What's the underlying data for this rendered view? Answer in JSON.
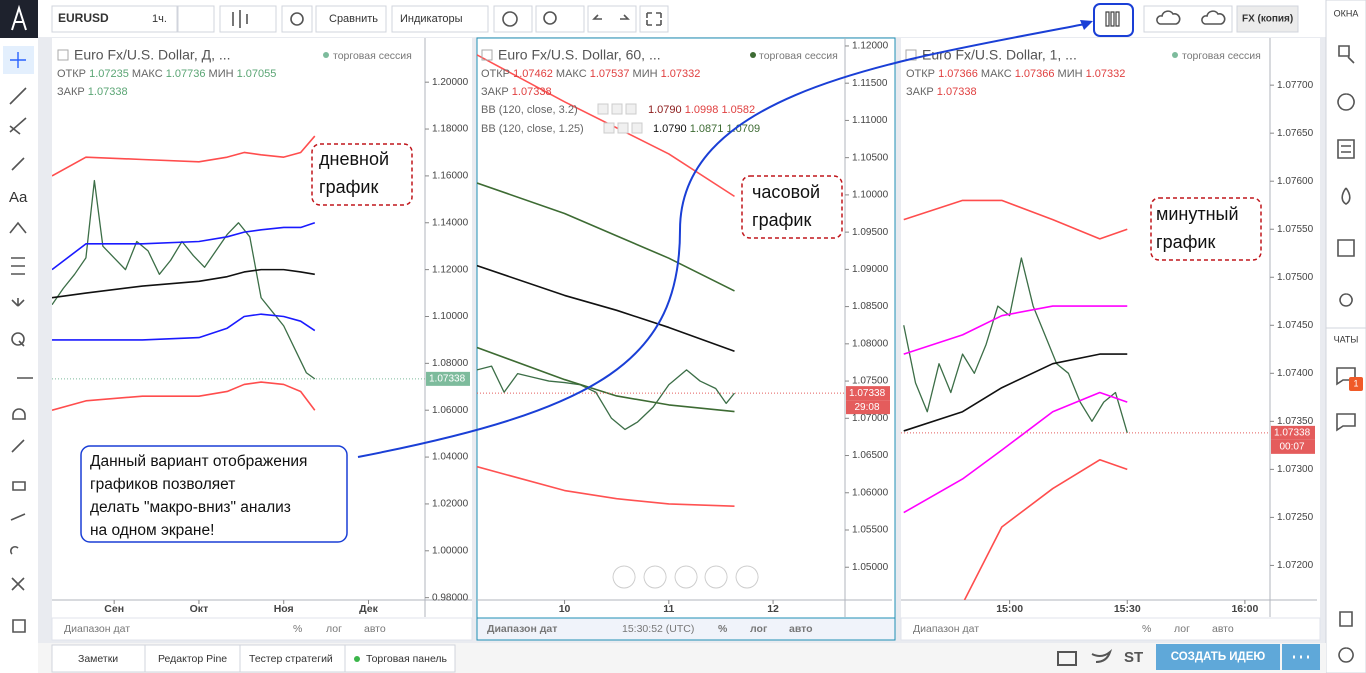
{
  "toolbar": {
    "symbol": "EURUSD",
    "interval": "1ч.",
    "compare": "Сравнить",
    "indicators": "Индикаторы",
    "layout_name": "FX (копия)"
  },
  "left_toolbar": {
    "text_tool": "Aa"
  },
  "right_sidebar": {
    "windows": "ОКНА",
    "chats": "ЧАТЫ",
    "badge": "1"
  },
  "bottom_bar": {
    "tabs": [
      "Заметки",
      "Редактор Pine",
      "Тестер стратегий",
      "Торговая панель"
    ],
    "stocktwits": "ST",
    "create_idea": "СОЗДАТЬ ИДЕЮ"
  },
  "panel_footer": {
    "range": "Диапазон дат",
    "percent": "%",
    "log": "лог",
    "auto": "авто",
    "clock": "15:30:52 (UTC)"
  },
  "annotations": {
    "daily": [
      "дневной",
      "график"
    ],
    "hourly": [
      "часовой",
      "график"
    ],
    "minute": [
      "минутный",
      "график"
    ],
    "note": [
      "Данный вариант отображения",
      "графиков позволяет",
      "делать \"макро-вниз\" анализ",
      "на одном экране!"
    ]
  },
  "chart_data": [
    {
      "type": "line",
      "title": "Euro Fx/U.S. Dollar, Д, ...",
      "session": "торговая сессия",
      "ohlc": {
        "open_label": "ОТКР",
        "open": "1.07235",
        "high_label": "МАКС",
        "high": "1.07736",
        "low_label": "МИН",
        "low": "1.07055",
        "close_label": "ЗАКР",
        "close": "1.07338"
      },
      "xlim": [
        8,
        140
      ],
      "ylim": [
        0.979,
        1.218
      ],
      "xticks": [
        {
          "value": 30,
          "label": "Сен"
        },
        {
          "value": 60,
          "label": "Окт"
        },
        {
          "value": 90,
          "label": "Ноя"
        },
        {
          "value": 120,
          "label": "Дек"
        }
      ],
      "yticks": [
        {
          "value": 0.98,
          "label": "0.98000"
        },
        {
          "value": 1.0,
          "label": "1.00000"
        },
        {
          "value": 1.02,
          "label": "1.02000"
        },
        {
          "value": 1.04,
          "label": "1.04000"
        },
        {
          "value": 1.06,
          "label": "1.06000"
        },
        {
          "value": 1.08,
          "label": "1.08000"
        },
        {
          "value": 1.1,
          "label": "1.10000"
        },
        {
          "value": 1.12,
          "label": "1.12000"
        },
        {
          "value": 1.14,
          "label": "1.14000"
        },
        {
          "value": 1.16,
          "label": "1.16000"
        },
        {
          "value": 1.18,
          "label": "1.18000"
        },
        {
          "value": 1.2,
          "label": "1.20000"
        }
      ],
      "grid": false,
      "last": 1.07338,
      "last_color": "#7dbb9c",
      "series": [
        {
          "color": "#3c6e47",
          "x": [
            8,
            12,
            16,
            20,
            23,
            26,
            30,
            34,
            38,
            42,
            46,
            50,
            54,
            58,
            62,
            66,
            70,
            74,
            78,
            82,
            86,
            90,
            94,
            98,
            101
          ],
          "values": [
            1.105,
            1.112,
            1.118,
            1.125,
            1.158,
            1.13,
            1.125,
            1.12,
            1.132,
            1.128,
            1.118,
            1.124,
            1.132,
            1.126,
            1.121,
            1.128,
            1.135,
            1.14,
            1.134,
            1.108,
            1.102,
            1.096,
            1.086,
            1.076,
            1.07338
          ]
        },
        {
          "color": "#ff4d4d",
          "x": [
            8,
            20,
            40,
            60,
            70,
            76,
            82,
            90,
            96,
            101
          ],
          "values": [
            1.16,
            1.168,
            1.167,
            1.166,
            1.168,
            1.17,
            1.169,
            1.168,
            1.17,
            1.177
          ]
        },
        {
          "color": "#1a1aff",
          "x": [
            8,
            20,
            40,
            60,
            70,
            76,
            82,
            90,
            96,
            101
          ],
          "values": [
            1.12,
            1.131,
            1.131,
            1.132,
            1.134,
            1.136,
            1.137,
            1.138,
            1.138,
            1.14
          ]
        },
        {
          "color": "#111111",
          "x": [
            8,
            20,
            40,
            60,
            70,
            76,
            82,
            90,
            96,
            101
          ],
          "values": [
            1.108,
            1.11,
            1.113,
            1.115,
            1.117,
            1.119,
            1.12,
            1.12,
            1.119,
            1.118
          ]
        },
        {
          "color": "#1a1aff",
          "x": [
            8,
            20,
            40,
            60,
            70,
            76,
            82,
            90,
            96,
            101
          ],
          "values": [
            1.09,
            1.09,
            1.09,
            1.091,
            1.095,
            1.1,
            1.101,
            1.1,
            1.098,
            1.094
          ]
        },
        {
          "color": "#ff4d4d",
          "x": [
            8,
            20,
            40,
            60,
            70,
            76,
            82,
            90,
            96,
            101
          ],
          "values": [
            1.06,
            1.064,
            1.066,
            1.066,
            1.068,
            1.071,
            1.072,
            1.071,
            1.068,
            1.06
          ]
        }
      ]
    },
    {
      "type": "line",
      "title": "Euro Fx/U.S. Dollar, 60, ...",
      "session": "торговая сессия",
      "ohlc": {
        "open_label": "ОТКР",
        "open": "1.07462",
        "high_label": "МАКС",
        "high": "1.07537",
        "low_label": "МИН",
        "low": "1.07332",
        "close_label": "ЗАКР",
        "close": "1.07338"
      },
      "indicators": [
        {
          "label": "BB (120, close, 3.2)",
          "values": [
            "1.0790",
            "1.0998",
            "1.0582"
          ]
        },
        {
          "label": "BB (120, close, 1.25)",
          "values": [
            "1.0790",
            "1.0871",
            "1.0709"
          ]
        }
      ],
      "xlim": [
        9.16,
        12.69
      ],
      "ylim": [
        1.0456,
        1.1208
      ],
      "xticks": [
        10,
        11,
        12
      ],
      "yticks": [
        {
          "value": 1.05,
          "label": "1.05000"
        },
        {
          "value": 1.055,
          "label": "1.05500"
        },
        {
          "value": 1.06,
          "label": "1.06000"
        },
        {
          "value": 1.065,
          "label": "1.06500"
        },
        {
          "value": 1.07,
          "label": "1.07000"
        },
        {
          "value": 1.075,
          "label": "1.07500"
        },
        {
          "value": 1.08,
          "label": "1.08000"
        },
        {
          "value": 1.085,
          "label": "1.08500"
        },
        {
          "value": 1.09,
          "label": "1.09000"
        },
        {
          "value": 1.095,
          "label": "1.09500"
        },
        {
          "value": 1.1,
          "label": "1.10000"
        },
        {
          "value": 1.105,
          "label": "1.10500"
        },
        {
          "value": 1.11,
          "label": "1.11000"
        },
        {
          "value": 1.115,
          "label": "1.11500"
        },
        {
          "value": 1.12,
          "label": "1.12000"
        }
      ],
      "grid": false,
      "last": 1.07338,
      "last_color": "#e45c5c",
      "countdown": "29:08",
      "series": [
        {
          "color": "#3c6e47",
          "x": [
            9.16,
            9.3,
            9.42,
            9.55,
            9.7,
            9.85,
            10.0,
            10.15,
            10.3,
            10.45,
            10.58,
            10.7,
            10.85,
            11.0,
            11.17,
            11.3,
            11.45,
            11.55,
            11.63
          ],
          "values": [
            1.0765,
            1.077,
            1.0735,
            1.076,
            1.0755,
            1.075,
            1.0748,
            1.0745,
            1.0735,
            1.07,
            1.0685,
            1.0695,
            1.0715,
            1.0745,
            1.0765,
            1.075,
            1.074,
            1.072,
            1.07338
          ]
        },
        {
          "color": "#ff5252",
          "x": [
            9.16,
            10.0,
            10.5,
            11.0,
            11.63
          ],
          "values": [
            1.1188,
            1.1125,
            1.109,
            1.1055,
            1.0998
          ]
        },
        {
          "color": "#3d6b33",
          "x": [
            9.16,
            10.0,
            10.5,
            11.0,
            11.63
          ],
          "values": [
            1.1016,
            1.0975,
            1.0945,
            1.0915,
            1.0871
          ]
        },
        {
          "color": "#111111",
          "x": [
            9.16,
            10.0,
            10.5,
            11.0,
            11.63
          ],
          "values": [
            1.0905,
            1.0865,
            1.0845,
            1.0822,
            1.079
          ]
        },
        {
          "color": "#3d6b33",
          "x": [
            9.16,
            10.0,
            10.5,
            11.0,
            11.63
          ],
          "values": [
            1.0795,
            1.0752,
            1.073,
            1.0718,
            1.0709
          ]
        },
        {
          "color": "#ff5252",
          "x": [
            9.16,
            10.0,
            10.5,
            11.0,
            11.63
          ],
          "values": [
            1.0635,
            1.0603,
            1.0592,
            1.0585,
            1.0582
          ]
        }
      ]
    },
    {
      "type": "line",
      "title": "Euro Fx/U.S. Dollar, 1, ...",
      "session": "торговая сессия",
      "ohlc": {
        "open_label": "ОТКР",
        "open": "1.07366",
        "high_label": "МАКС",
        "high": "1.07366",
        "low_label": "МИН",
        "low": "1.07332",
        "close_label": "ЗАКР",
        "close": "1.07338"
      },
      "xlim": [
        872.3,
        966.4
      ],
      "ylim": [
        1.07164,
        1.07747
      ],
      "xticks": [
        {
          "value": 900,
          "label": "15:00"
        },
        {
          "value": 930,
          "label": "15:30"
        },
        {
          "value": 960,
          "label": "16:00"
        }
      ],
      "yticks": [
        {
          "value": 1.072,
          "label": "1.07200"
        },
        {
          "value": 1.0725,
          "label": "1.07250"
        },
        {
          "value": 1.073,
          "label": "1.07300"
        },
        {
          "value": 1.0735,
          "label": "1.07350"
        },
        {
          "value": 1.074,
          "label": "1.07400"
        },
        {
          "value": 1.0745,
          "label": "1.07450"
        },
        {
          "value": 1.075,
          "label": "1.07500"
        },
        {
          "value": 1.0755,
          "label": "1.07550"
        },
        {
          "value": 1.076,
          "label": "1.07600"
        },
        {
          "value": 1.0765,
          "label": "1.07650"
        },
        {
          "value": 1.077,
          "label": "1.07700"
        }
      ],
      "grid": false,
      "last": 1.07338,
      "last_color": "#e45c5c",
      "countdown": "00:07",
      "series": [
        {
          "color": "#3c6e47",
          "x": [
            873,
            876,
            879,
            882,
            885,
            888,
            891,
            894,
            897,
            900,
            903,
            906,
            909,
            912,
            915,
            918,
            921,
            924,
            927,
            930
          ],
          "values": [
            1.0745,
            1.0739,
            1.0736,
            1.0741,
            1.0738,
            1.0742,
            1.074,
            1.0743,
            1.0747,
            1.0746,
            1.0752,
            1.0747,
            1.0744,
            1.0741,
            1.074,
            1.0737,
            1.0735,
            1.0737,
            1.0738,
            1.07338
          ]
        },
        {
          "color": "#ff4d4d",
          "x": [
            873,
            888,
            898,
            911,
            923,
            930
          ],
          "values": [
            1.0756,
            1.0758,
            1.0758,
            1.0756,
            1.0754,
            1.0755
          ]
        },
        {
          "color": "#ff00ff",
          "x": [
            873,
            888,
            898,
            911,
            923,
            930
          ],
          "values": [
            1.0742,
            1.0744,
            1.0746,
            1.0747,
            1.0747,
            1.0747
          ]
        },
        {
          "color": "#111111",
          "x": [
            873,
            888,
            898,
            911,
            923,
            930
          ],
          "values": [
            1.0734,
            1.0736,
            1.07385,
            1.0741,
            1.0742,
            1.0742
          ]
        },
        {
          "color": "#ff00ff",
          "x": [
            873,
            888,
            898,
            911,
            923,
            930
          ],
          "values": [
            1.07255,
            1.0729,
            1.0732,
            1.0736,
            1.0738,
            1.0737
          ]
        },
        {
          "color": "#ff4d4d",
          "x": [
            873,
            888,
            898,
            911,
            923,
            930
          ],
          "values": [
            null,
            1.0716,
            1.0724,
            1.0728,
            1.0731,
            1.073
          ]
        }
      ]
    }
  ]
}
